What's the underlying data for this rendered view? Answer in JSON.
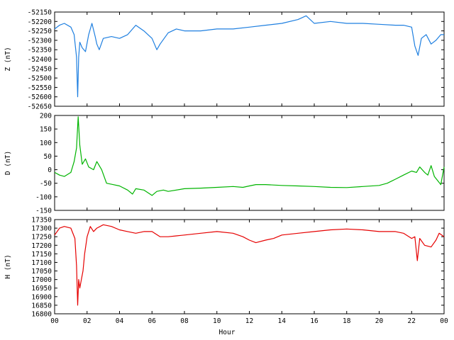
{
  "chart_data": [
    {
      "type": "line",
      "ylabel": "Z (nT)",
      "color": "#1e7fe0",
      "ylim": [
        -52650,
        -52150
      ],
      "yticks": [
        -52150,
        -52200,
        -52250,
        -52300,
        -52350,
        -52400,
        -52450,
        -52500,
        -52550,
        -52600,
        -52650
      ],
      "xlim": [
        0,
        24
      ],
      "series": [
        {
          "x": [
            0,
            0.3,
            0.6,
            1.0,
            1.2,
            1.35,
            1.42,
            1.48,
            1.55,
            1.7,
            1.9,
            2.1,
            2.3,
            2.5,
            2.6,
            2.75,
            3.0,
            3.5,
            4.0,
            4.5,
            5.0,
            5.5,
            6.0,
            6.3,
            6.5,
            7.0,
            7.5,
            8.0,
            9.0,
            10.0,
            11.0,
            12.0,
            13.0,
            14.0,
            15.0,
            15.5,
            16.0,
            17.0,
            18.0,
            19.0,
            20.0,
            21.0,
            21.5,
            22.0,
            22.2,
            22.4,
            22.6,
            22.9,
            23.2,
            23.5,
            23.8,
            24.0
          ],
          "values": [
            -52240,
            -52220,
            -52210,
            -52230,
            -52270,
            -52390,
            -52600,
            -52390,
            -52310,
            -52340,
            -52360,
            -52270,
            -52210,
            -52280,
            -52320,
            -52350,
            -52290,
            -52280,
            -52290,
            -52270,
            -52220,
            -52250,
            -52290,
            -52350,
            -52320,
            -52260,
            -52240,
            -52250,
            -52250,
            -52240,
            -52240,
            -52230,
            -52220,
            -52210,
            -52190,
            -52170,
            -52210,
            -52200,
            -52210,
            -52210,
            -52215,
            -52220,
            -52220,
            -52230,
            -52330,
            -52380,
            -52290,
            -52270,
            -52320,
            -52300,
            -52270,
            -52270
          ]
        }
      ]
    },
    {
      "type": "line",
      "ylabel": "D (nT)",
      "color": "#00b400",
      "ylim": [
        -150,
        200
      ],
      "yticks": [
        200,
        150,
        100,
        50,
        0,
        -50,
        -100,
        -150
      ],
      "xlim": [
        0,
        24
      ],
      "series": [
        {
          "x": [
            0,
            0.3,
            0.6,
            1.0,
            1.2,
            1.35,
            1.45,
            1.55,
            1.7,
            1.9,
            2.1,
            2.4,
            2.6,
            2.9,
            3.2,
            3.6,
            4.0,
            4.5,
            4.8,
            5.0,
            5.5,
            6.0,
            6.3,
            6.7,
            7.0,
            8.0,
            9.0,
            10.0,
            11.0,
            11.6,
            12.0,
            12.4,
            13.0,
            14.0,
            15.0,
            16.0,
            17.0,
            18.0,
            19.0,
            20.0,
            20.5,
            21.0,
            21.5,
            22.0,
            22.3,
            22.5,
            22.8,
            23.0,
            23.2,
            23.4,
            23.6,
            23.8,
            24.0
          ],
          "values": [
            -10,
            -20,
            -25,
            -10,
            30,
            80,
            195,
            90,
            20,
            40,
            10,
            0,
            30,
            0,
            -50,
            -55,
            -60,
            -75,
            -90,
            -70,
            -75,
            -95,
            -80,
            -75,
            -80,
            -70,
            -68,
            -65,
            -62,
            -65,
            -60,
            -55,
            -55,
            -58,
            -60,
            -62,
            -65,
            -66,
            -62,
            -58,
            -50,
            -35,
            -20,
            -5,
            -10,
            10,
            -10,
            -20,
            15,
            -25,
            -40,
            -55,
            10
          ]
        }
      ]
    },
    {
      "type": "line",
      "ylabel": "H (nT)",
      "color": "#e60000",
      "ylim": [
        16800,
        17350
      ],
      "yticks": [
        17350,
        17300,
        17250,
        17200,
        17150,
        17100,
        17050,
        17000,
        16950,
        16900,
        16850,
        16800
      ],
      "xlim": [
        0,
        24
      ],
      "xticks": [
        "00",
        "02",
        "04",
        "06",
        "08",
        "10",
        "12",
        "14",
        "16",
        "18",
        "20",
        "22",
        "00"
      ],
      "xlabel": "Hour",
      "series": [
        {
          "x": [
            0,
            0.3,
            0.6,
            1.0,
            1.25,
            1.35,
            1.42,
            1.48,
            1.55,
            1.65,
            1.75,
            1.85,
            2.0,
            2.2,
            2.4,
            2.6,
            3.0,
            3.5,
            4.0,
            4.5,
            5.0,
            5.5,
            6.0,
            6.5,
            7.0,
            7.5,
            8.0,
            9.0,
            10.0,
            11.0,
            11.6,
            12.0,
            12.4,
            13.0,
            13.5,
            14.0,
            15.0,
            16.0,
            17.0,
            18.0,
            19.0,
            20.0,
            20.5,
            21.0,
            21.5,
            22.0,
            22.2,
            22.35,
            22.5,
            22.8,
            23.2,
            23.5,
            23.7,
            24.0
          ],
          "values": [
            17260,
            17300,
            17310,
            17300,
            17240,
            17080,
            16850,
            17000,
            16950,
            17000,
            17050,
            17150,
            17250,
            17310,
            17280,
            17300,
            17320,
            17310,
            17290,
            17280,
            17270,
            17280,
            17280,
            17250,
            17250,
            17255,
            17260,
            17270,
            17280,
            17270,
            17250,
            17230,
            17215,
            17230,
            17240,
            17260,
            17270,
            17280,
            17290,
            17295,
            17290,
            17280,
            17280,
            17280,
            17270,
            17240,
            17250,
            17110,
            17240,
            17200,
            17190,
            17230,
            17270,
            17250
          ]
        }
      ]
    }
  ]
}
